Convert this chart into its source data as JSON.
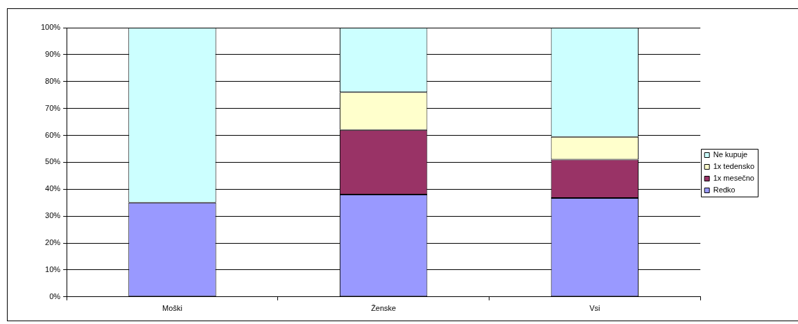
{
  "chart_data": {
    "type": "bar",
    "categories": [
      "Moški",
      "Ženske",
      "Vsi"
    ],
    "series": [
      {
        "name": "Redko",
        "color": "#9999ff",
        "values": [
          35,
          38,
          36.7
        ]
      },
      {
        "name": "1x mesečno",
        "color": "#993366",
        "values": [
          0,
          24,
          14.3
        ]
      },
      {
        "name": "1x tedensko",
        "color": "#ffffcc",
        "values": [
          0,
          14,
          8.4
        ]
      },
      {
        "name": "Ne kupuje",
        "color": "#ccffff",
        "values": [
          65,
          24,
          40.6
        ]
      }
    ],
    "stacked": true,
    "ylim": [
      0,
      100
    ],
    "yticks": [
      {
        "value": 0,
        "label": "0%"
      },
      {
        "value": 10,
        "label": "10%"
      },
      {
        "value": 20,
        "label": "20%"
      },
      {
        "value": 30,
        "label": "30%"
      },
      {
        "value": 40,
        "label": "40%"
      },
      {
        "value": 50,
        "label": "50%"
      },
      {
        "value": 60,
        "label": "60%"
      },
      {
        "value": 70,
        "label": "70%"
      },
      {
        "value": 80,
        "label": "80%"
      },
      {
        "value": 90,
        "label": "90%"
      },
      {
        "value": 100,
        "label": "100%"
      }
    ],
    "grid": "y",
    "legend": "right"
  }
}
